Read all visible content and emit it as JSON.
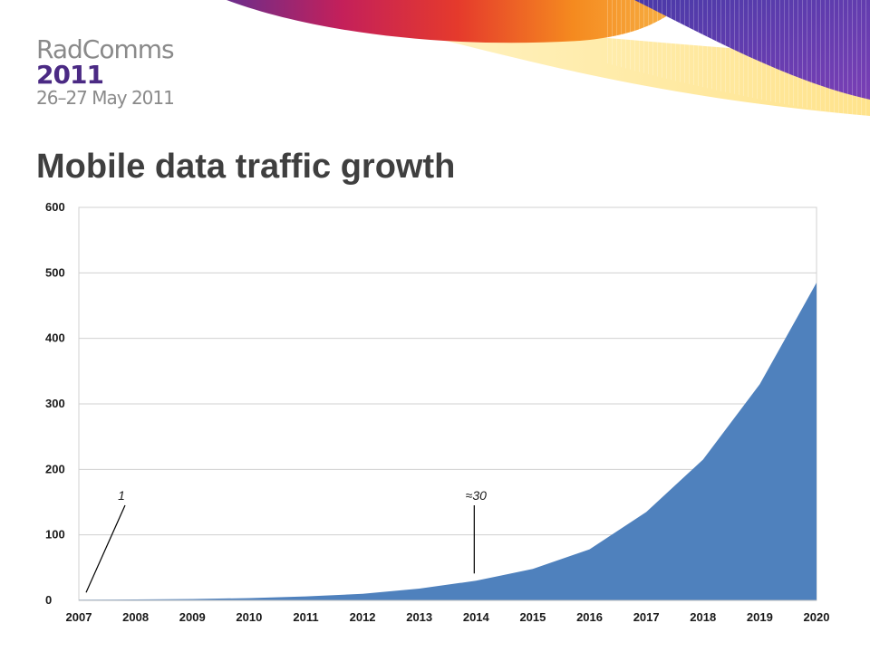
{
  "header": {
    "brand_line1": "RadComms",
    "brand_line2": "2011",
    "brand_line3": "26–27 May 2011"
  },
  "slide": {
    "title": "Mobile data traffic growth"
  },
  "colors": {
    "area_fill": "#4f81bd",
    "grid": "#d0d0d0",
    "brand_purple": "#4b2a84",
    "brand_grey": "#8a8a8a",
    "title_grey": "#3f3f3f"
  },
  "chart_data": {
    "type": "area",
    "title": "",
    "xlabel": "",
    "ylabel": "",
    "x": [
      2007,
      2008,
      2009,
      2010,
      2011,
      2012,
      2013,
      2014,
      2015,
      2016,
      2017,
      2018,
      2019,
      2020
    ],
    "values": [
      1,
      1.3,
      2,
      3.5,
      6,
      10,
      18,
      30,
      48,
      78,
      135,
      215,
      330,
      485
    ],
    "xlim": [
      2007,
      2020
    ],
    "ylim": [
      0,
      600
    ],
    "yticks": [
      "0",
      "100",
      "200",
      "300",
      "400",
      "500",
      "600"
    ],
    "xticks": [
      "2007",
      "2008",
      "2009",
      "2010",
      "2011",
      "2012",
      "2013",
      "2014",
      "2015",
      "2016",
      "2017",
      "2018",
      "2019",
      "2020"
    ],
    "grid": true,
    "legend": "none",
    "annotations": [
      {
        "label": "1",
        "x": 2007,
        "y": 1
      },
      {
        "label": "≈30",
        "x": 2014,
        "y": 30
      }
    ]
  }
}
